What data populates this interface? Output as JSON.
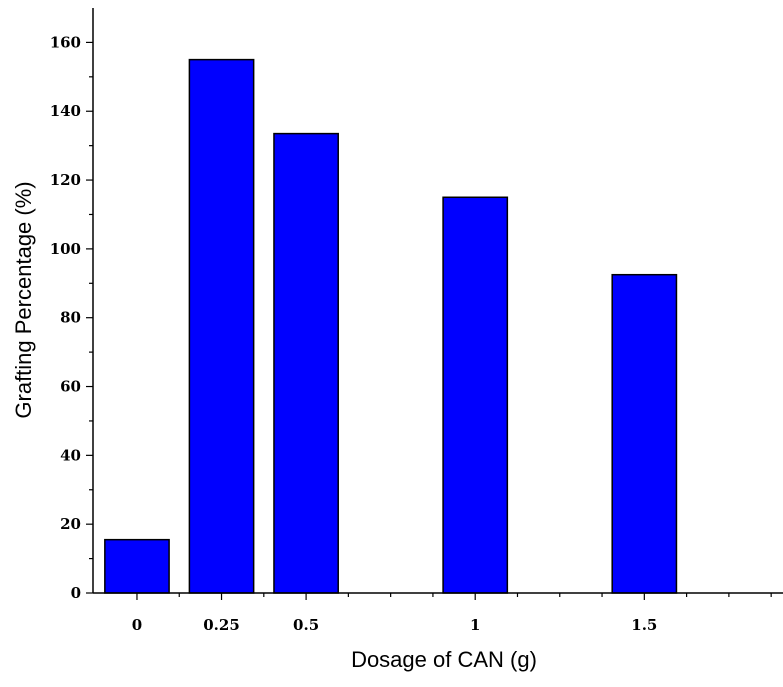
{
  "chart_data": {
    "type": "bar",
    "title": "",
    "xlabel": "Dosage of CAN (g)",
    "ylabel": "Grafting Percentage (%)",
    "x_scale": "linear",
    "xlim": [
      -0.13,
      1.91
    ],
    "ylim": [
      0,
      170
    ],
    "y_major_ticks": [
      0,
      20,
      40,
      60,
      80,
      100,
      120,
      140,
      160
    ],
    "y_minor_step": 10,
    "x_ticks": [
      0,
      0.25,
      0.5,
      1,
      1.5
    ],
    "x_tick_labels": [
      "0",
      "0.25",
      "0.5",
      "1",
      "1.5"
    ],
    "bar_width": 0.19,
    "bar_color": "#0000FF",
    "bar_edge_color": "#000000",
    "grid": false,
    "legend": "none",
    "points": [
      {
        "x": 0,
        "label": "0",
        "value": 15.5
      },
      {
        "x": 0.25,
        "label": "0.25",
        "value": 155
      },
      {
        "x": 0.5,
        "label": "0.5",
        "value": 133.5
      },
      {
        "x": 1,
        "label": "1",
        "value": 115
      },
      {
        "x": 1.5,
        "label": "1.5",
        "value": 92.5
      }
    ]
  }
}
